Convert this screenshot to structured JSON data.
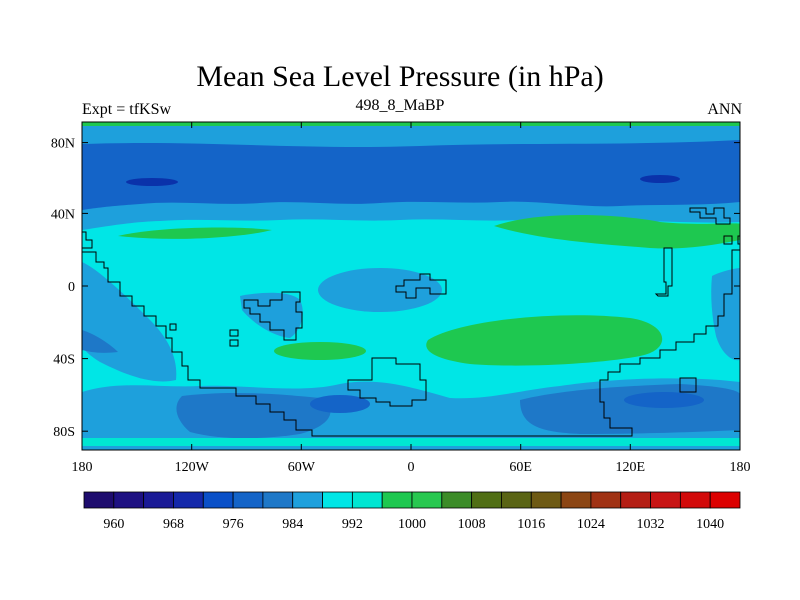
{
  "title": "Mean Sea Level Pressure (in hPa)",
  "experiment": "Expt = tfKSw",
  "dataset": "498_8_MaBP",
  "season": "ANN",
  "x_ticks": [
    "180",
    "120W",
    "60W",
    "0",
    "60E",
    "120E",
    "180"
  ],
  "y_ticks": [
    "80N",
    "40N",
    "0",
    "40S",
    "80S"
  ],
  "colorbar": {
    "colors": [
      "#1e0c6e",
      "#1e1182",
      "#1a1a96",
      "#1428aa",
      "#0a50c8",
      "#1464c8",
      "#1e78c8",
      "#1ea0dc",
      "#00e6e6",
      "#00e6d2",
      "#1ec850",
      "#28c850",
      "#3c8c28",
      "#506e14",
      "#5a6414",
      "#6e5a14",
      "#8c4614",
      "#a03214",
      "#b41e14",
      "#c81414",
      "#d20a0a",
      "#dc0000"
    ],
    "labels": [
      "960",
      "968",
      "976",
      "984",
      "992",
      "1000",
      "1008",
      "1016",
      "1024",
      "1032",
      "1040"
    ]
  },
  "palette": {
    "background": "#00e6e6",
    "low1": "#1ea0dc",
    "low2": "#1464c8",
    "low3": "#0a32aa",
    "high": "#1ec850",
    "coast": "#000000"
  }
}
